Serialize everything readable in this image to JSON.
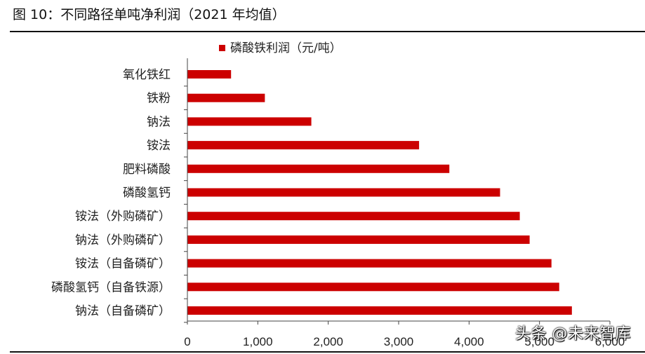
{
  "header": {
    "title": "图 10：不同路径单吨净利润（2021 年均值）"
  },
  "watermark": "头条 @未来智库",
  "chart_data": {
    "type": "bar",
    "orientation": "horizontal",
    "title": "",
    "xlabel": "",
    "ylabel": "",
    "categories": [
      "氧化铁红",
      "铁粉",
      "钠法",
      "铵法",
      "肥料磷酸",
      "磷酸氢钙",
      "铵法（外购磷矿）",
      "钠法（外购磷矿）",
      "铵法（自备磷矿）",
      "磷酸氢钙（自备铁源）",
      "钠法（自备磷矿）"
    ],
    "series": [
      {
        "name": "磷酸铁利润（元/吨）",
        "color": "#cc0000",
        "values": [
          620,
          1100,
          1760,
          3290,
          3720,
          4440,
          4720,
          4860,
          5170,
          5280,
          5460
        ]
      }
    ],
    "xlim": [
      0,
      6000
    ],
    "xticks": [
      "0",
      "1,000",
      "2,000",
      "3,000",
      "4,000",
      "5,000",
      "6,000"
    ],
    "grid": false,
    "legend": "top-center"
  }
}
